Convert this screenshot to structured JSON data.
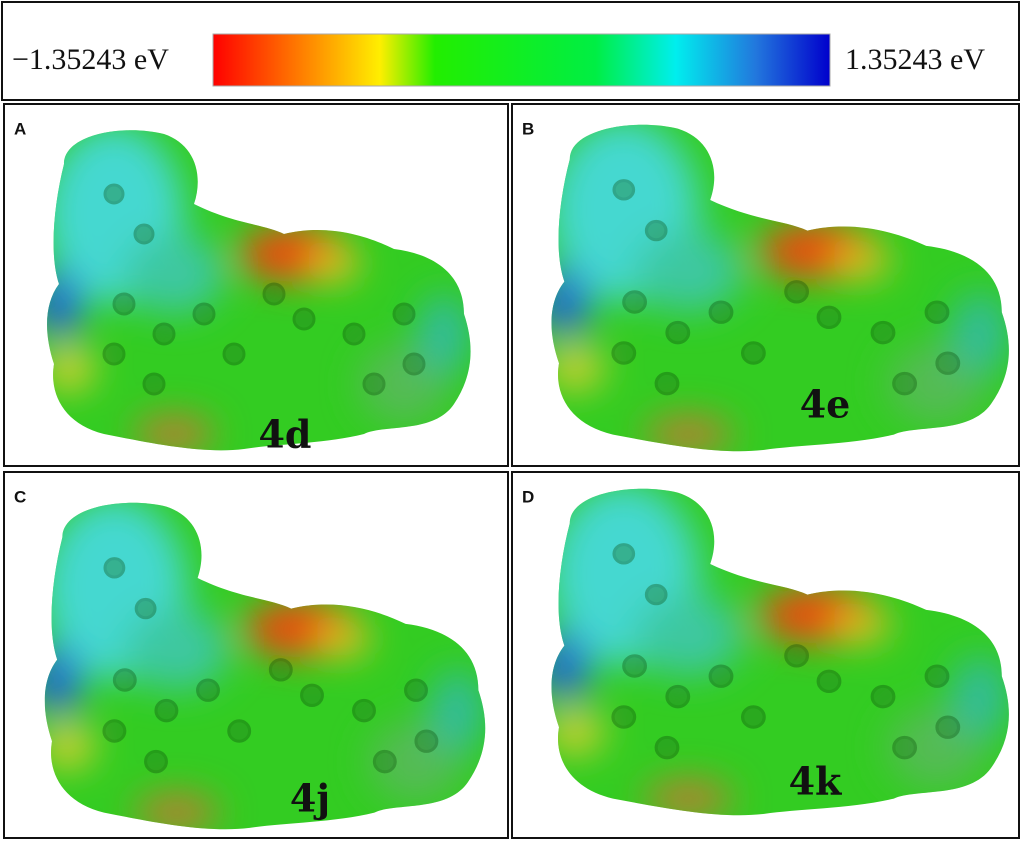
{
  "colorbar": {
    "min_label": "−1.35243 eV",
    "max_label": "1.35243 eV"
  },
  "panels": [
    {
      "letter": "A",
      "compound": "4d"
    },
    {
      "letter": "B",
      "compound": "4e"
    },
    {
      "letter": "C",
      "compound": "4j"
    },
    {
      "letter": "D",
      "compound": "4k"
    }
  ]
}
